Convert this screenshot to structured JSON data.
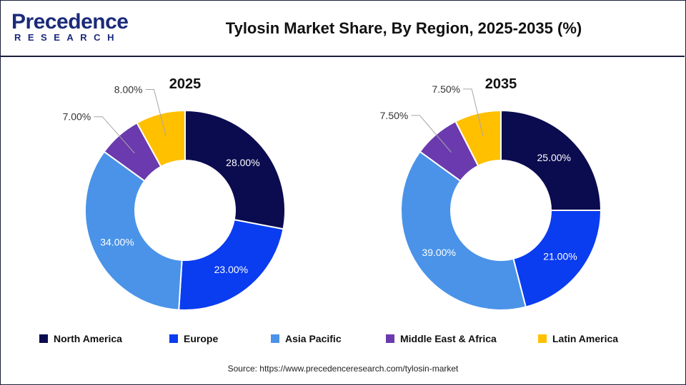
{
  "header": {
    "logo_name": "Precedence",
    "logo_sub": "RESEARCH",
    "title": "Tylosin Market Share, By Region, 2025-2035 (%)"
  },
  "chart_data": {
    "type": "pie",
    "variant": "donut",
    "categories": [
      "North America",
      "Europe",
      "Asia Pacific",
      "Middle East & Africa",
      "Latin America"
    ],
    "colors": [
      "#0b0b4f",
      "#0a3cf0",
      "#4a93e8",
      "#6a3aae",
      "#ffc000"
    ],
    "charts": [
      {
        "title": "2025",
        "values": [
          28.0,
          23.0,
          34.0,
          7.0,
          8.0
        ],
        "labels": [
          "28.00%",
          "23.00%",
          "34.00%",
          "7.00%",
          "8.00%"
        ]
      },
      {
        "title": "2035",
        "values": [
          25.0,
          21.0,
          39.0,
          7.5,
          7.5
        ],
        "labels": [
          "25.00%",
          "21.00%",
          "39.00%",
          "7.50%",
          "7.50%"
        ]
      }
    ],
    "legend_position": "bottom"
  },
  "source": "Source: https://www.precedenceresearch.com/tylosin-market"
}
